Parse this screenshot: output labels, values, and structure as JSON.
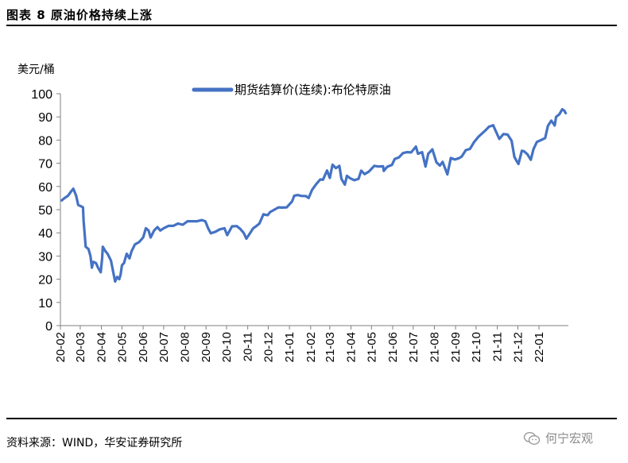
{
  "header": {
    "title": "图表 8  原油价格持续上涨"
  },
  "footer": {
    "source": "资料来源：WIND，华安证券研究所",
    "watermark": "何宁宏观"
  },
  "colors": {
    "series": "#4472c4",
    "axis": "#808080",
    "text": "#000000"
  },
  "chart_data": {
    "type": "line",
    "unit_label": "美元/桶",
    "ylim": [
      0,
      100
    ],
    "yticks": [
      0,
      10,
      20,
      30,
      40,
      50,
      60,
      70,
      80,
      90,
      100
    ],
    "grid": false,
    "legend_position": "top-center",
    "categories": [
      "20-02",
      "20-03",
      "20-04",
      "20-05",
      "20-06",
      "20-07",
      "20-08",
      "20-09",
      "20-10",
      "20-11",
      "20-12",
      "21-01",
      "21-02",
      "21-03",
      "21-04",
      "21-05",
      "21-06",
      "21-07",
      "21-08",
      "21-09",
      "21-10",
      "21-11",
      "21-12",
      "22-01"
    ],
    "x_end": "22-02",
    "series": [
      {
        "name": "期货结算价(连续):布伦特原油",
        "points": [
          [
            "20-02-03",
            54
          ],
          [
            "20-02-07",
            55
          ],
          [
            "20-02-12",
            56
          ],
          [
            "20-02-17",
            58
          ],
          [
            "20-02-20",
            59
          ],
          [
            "20-02-24",
            56
          ],
          [
            "20-02-27",
            52
          ],
          [
            "20-03-02",
            51.5
          ],
          [
            "20-03-05",
            51
          ],
          [
            "20-03-06",
            45
          ],
          [
            "20-03-09",
            34
          ],
          [
            "20-03-13",
            33
          ],
          [
            "20-03-16",
            30
          ],
          [
            "20-03-18",
            25
          ],
          [
            "20-03-20",
            27.5
          ],
          [
            "20-03-24",
            27
          ],
          [
            "20-03-27",
            25
          ],
          [
            "20-03-31",
            23
          ],
          [
            "20-04-02",
            29
          ],
          [
            "20-04-03",
            34
          ],
          [
            "20-04-07",
            32
          ],
          [
            "20-04-10",
            31
          ],
          [
            "20-04-15",
            28
          ],
          [
            "20-04-21",
            19
          ],
          [
            "20-04-24",
            21
          ],
          [
            "20-04-27",
            20
          ],
          [
            "20-04-29",
            22
          ],
          [
            "20-05-01",
            26
          ],
          [
            "20-05-04",
            27
          ],
          [
            "20-05-08",
            31
          ],
          [
            "20-05-12",
            29
          ],
          [
            "20-05-15",
            32
          ],
          [
            "20-05-20",
            35
          ],
          [
            "20-05-26",
            36
          ],
          [
            "20-06-01",
            38
          ],
          [
            "20-06-05",
            42
          ],
          [
            "20-06-09",
            41
          ],
          [
            "20-06-12",
            38
          ],
          [
            "20-06-17",
            41
          ],
          [
            "20-06-22",
            42.5
          ],
          [
            "20-06-26",
            41
          ],
          [
            "20-07-01",
            42
          ],
          [
            "20-07-08",
            43
          ],
          [
            "20-07-15",
            43
          ],
          [
            "20-07-22",
            44
          ],
          [
            "20-07-29",
            43.5
          ],
          [
            "20-08-05",
            45
          ],
          [
            "20-08-12",
            45
          ],
          [
            "20-08-19",
            45
          ],
          [
            "20-08-26",
            45.5
          ],
          [
            "20-08-31",
            45
          ],
          [
            "20-09-04",
            42
          ],
          [
            "20-09-08",
            39.8
          ],
          [
            "20-09-15",
            40.5
          ],
          [
            "20-09-21",
            41.5
          ],
          [
            "20-09-28",
            42
          ],
          [
            "20-10-02",
            39
          ],
          [
            "20-10-09",
            42.8
          ],
          [
            "20-10-16",
            42.9
          ],
          [
            "20-10-21",
            41.7
          ],
          [
            "20-10-26",
            40
          ],
          [
            "20-10-30",
            37.5
          ],
          [
            "20-11-04",
            39.7
          ],
          [
            "20-11-09",
            42
          ],
          [
            "20-11-13",
            42.8
          ],
          [
            "20-11-18",
            44
          ],
          [
            "20-11-24",
            48
          ],
          [
            "20-11-30",
            47.6
          ],
          [
            "20-12-04",
            49
          ],
          [
            "20-12-10",
            50
          ],
          [
            "20-12-16",
            51
          ],
          [
            "20-12-21",
            50.9
          ],
          [
            "20-12-28",
            51
          ],
          [
            "21-01-05",
            53.6
          ],
          [
            "21-01-08",
            56
          ],
          [
            "21-01-13",
            56.3
          ],
          [
            "21-01-19",
            55.9
          ],
          [
            "21-01-25",
            55.9
          ],
          [
            "21-01-29",
            55
          ],
          [
            "21-02-03",
            58.5
          ],
          [
            "21-02-09",
            61
          ],
          [
            "21-02-15",
            63
          ],
          [
            "21-02-19",
            62.9
          ],
          [
            "21-02-25",
            66.9
          ],
          [
            "21-03-01",
            63.7
          ],
          [
            "21-03-05",
            69.4
          ],
          [
            "21-03-10",
            67.9
          ],
          [
            "21-03-15",
            68.9
          ],
          [
            "21-03-18",
            63.3
          ],
          [
            "21-03-23",
            60.8
          ],
          [
            "21-03-26",
            64.6
          ],
          [
            "21-03-31",
            63.5
          ],
          [
            "21-04-06",
            62.7
          ],
          [
            "21-04-12",
            63.3
          ],
          [
            "21-04-16",
            66.8
          ],
          [
            "21-04-21",
            65.3
          ],
          [
            "21-04-27",
            66.4
          ],
          [
            "21-04-30",
            67.3
          ],
          [
            "21-05-05",
            68.9
          ],
          [
            "21-05-11",
            68.6
          ],
          [
            "21-05-18",
            68.7
          ],
          [
            "21-05-19",
            66.7
          ],
          [
            "21-05-24",
            68.5
          ],
          [
            "21-05-31",
            69.3
          ],
          [
            "21-06-04",
            71.9
          ],
          [
            "21-06-10",
            72.5
          ],
          [
            "21-06-16",
            74.4
          ],
          [
            "21-06-22",
            74.8
          ],
          [
            "21-06-28",
            74.7
          ],
          [
            "21-07-05",
            77.2
          ],
          [
            "21-07-08",
            74.1
          ],
          [
            "21-07-14",
            74.8
          ],
          [
            "21-07-19",
            68.6
          ],
          [
            "21-07-23",
            74.1
          ],
          [
            "21-07-29",
            76
          ],
          [
            "21-08-04",
            70.4
          ],
          [
            "21-08-09",
            69
          ],
          [
            "21-08-13",
            70.6
          ],
          [
            "21-08-20",
            65.2
          ],
          [
            "21-08-25",
            72.3
          ],
          [
            "21-08-31",
            71.6
          ],
          [
            "21-09-06",
            72.2
          ],
          [
            "21-09-10",
            72.9
          ],
          [
            "21-09-16",
            75.7
          ],
          [
            "21-09-22",
            76.2
          ],
          [
            "21-09-28",
            79.1
          ],
          [
            "21-10-04",
            81.3
          ],
          [
            "21-10-08",
            82.4
          ],
          [
            "21-10-14",
            84
          ],
          [
            "21-10-20",
            85.8
          ],
          [
            "21-10-26",
            86.4
          ],
          [
            "21-10-29",
            84.4
          ],
          [
            "21-11-04",
            80.5
          ],
          [
            "21-11-10",
            82.6
          ],
          [
            "21-11-16",
            82.4
          ],
          [
            "21-11-22",
            79.7
          ],
          [
            "21-11-26",
            72.7
          ],
          [
            "21-11-30",
            70.6
          ],
          [
            "21-12-02",
            69.7
          ],
          [
            "21-12-07",
            75.4
          ],
          [
            "21-12-10",
            75.2
          ],
          [
            "21-12-15",
            73.9
          ],
          [
            "21-12-20",
            71.5
          ],
          [
            "21-12-24",
            76.1
          ],
          [
            "21-12-29",
            79.2
          ],
          [
            "22-01-04",
            80
          ],
          [
            "22-01-10",
            80.9
          ],
          [
            "22-01-14",
            86.1
          ],
          [
            "22-01-19",
            88.4
          ],
          [
            "22-01-24",
            86.3
          ],
          [
            "22-01-26",
            90
          ],
          [
            "22-01-31",
            91.2
          ],
          [
            "22-02-04",
            93.3
          ],
          [
            "22-02-07",
            92.7
          ],
          [
            "22-02-09",
            91.6
          ]
        ]
      }
    ]
  }
}
